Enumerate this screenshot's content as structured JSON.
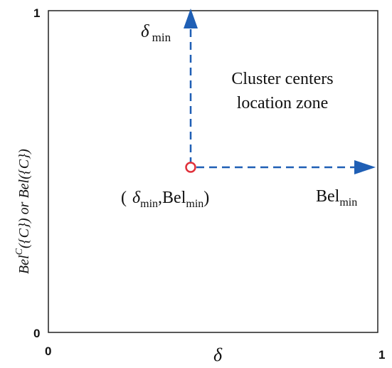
{
  "axes": {
    "x_label": "δ",
    "y_label_main": "Bel",
    "y_label_sup": "C",
    "y_label_rest": "({C})  or  Bel({C})",
    "x_ticks": [
      "0",
      "1"
    ],
    "y_ticks": [
      "0",
      "1"
    ]
  },
  "annotations": {
    "zone_line1": "Cluster centers",
    "zone_line2": "location zone",
    "delta_min_symbol": "δ",
    "delta_min_subscript": "min",
    "bel_min_main": "Bel",
    "bel_min_subscript": "min",
    "point_open": "(",
    "point_delta": "δ",
    "point_delta_sub": "min",
    "point_sep": ",Bel",
    "point_bel_sub": "min",
    "point_close": ")"
  },
  "colors": {
    "arrow": "#1f5fb5",
    "marker": "#e0303a",
    "axes": "#222222",
    "text": "#111111"
  }
}
